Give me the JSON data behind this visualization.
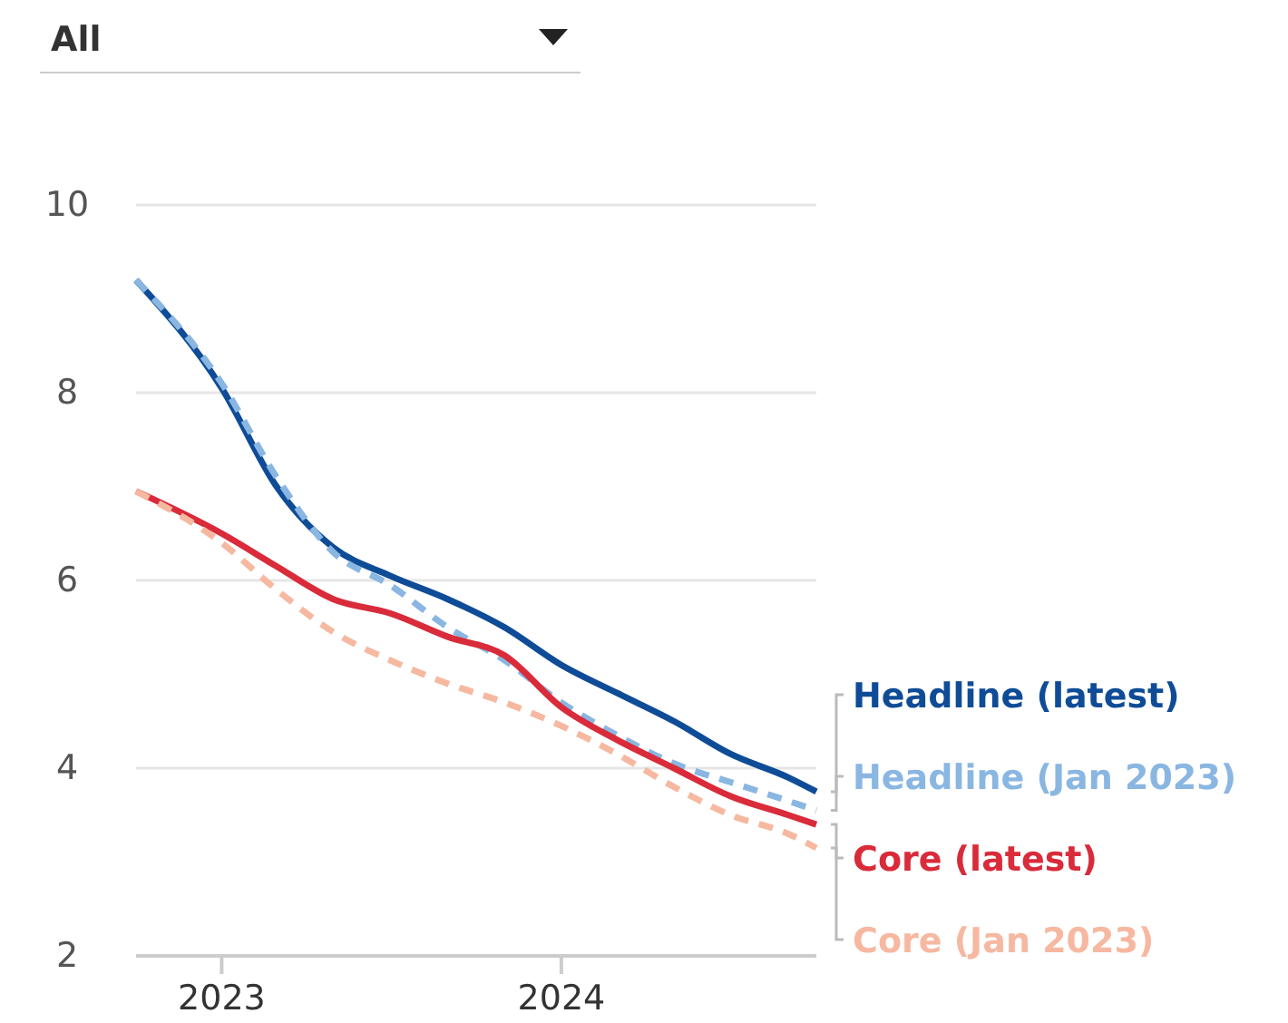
{
  "chart_data": {
    "type": "line",
    "x": [
      "2022-10",
      "2023-01",
      "2023-03",
      "2023-05",
      "2023-07",
      "2023-09",
      "2023-11",
      "2024-01",
      "2024-03",
      "2024-05",
      "2024-07",
      "2024-09",
      "2024-10"
    ],
    "series": [
      {
        "name": "Headline (latest)",
        "color": "#0f4c97",
        "line_style": "solid",
        "values": [
          9.2,
          8.05,
          7.0,
          6.35,
          6.05,
          5.8,
          5.5,
          5.1,
          4.8,
          4.5,
          4.15,
          3.9,
          3.75
        ]
      },
      {
        "name": "Headline (Jan 2023)",
        "color": "#8ab6e2",
        "line_style": "dashed",
        "values": [
          9.2,
          8.1,
          7.1,
          6.3,
          5.95,
          5.5,
          5.15,
          4.7,
          4.35,
          4.05,
          3.85,
          3.65,
          3.55
        ]
      },
      {
        "name": "Core (latest)",
        "color": "#d92b3a",
        "line_style": "solid",
        "values": [
          6.95,
          6.5,
          6.15,
          5.8,
          5.65,
          5.4,
          5.2,
          4.65,
          4.3,
          4.0,
          3.7,
          3.5,
          3.4
        ]
      },
      {
        "name": "Core (Jan 2023)",
        "color": "#f6b8a0",
        "line_style": "dashed",
        "values": [
          6.95,
          6.4,
          5.9,
          5.45,
          5.15,
          4.9,
          4.7,
          4.45,
          4.15,
          3.8,
          3.5,
          3.3,
          3.15
        ]
      }
    ],
    "xlim": [
      "2022-10",
      "2024-10"
    ],
    "xticks": [
      "2023",
      "2024"
    ],
    "ylim": [
      2,
      10
    ],
    "yticks": [
      2,
      4,
      6,
      8,
      10
    ],
    "grid": "y",
    "legend": "right",
    "marker": "none",
    "annotations": [
      "All"
    ]
  }
}
